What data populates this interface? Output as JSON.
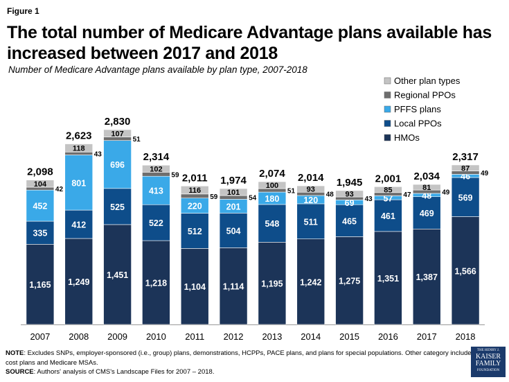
{
  "figure_label": "Figure 1",
  "title": "The total number of Medicare Advantage plans available has increased between 2017 and 2018",
  "subtitle": "Number of Medicare Advantage plans available by plan type, 2007-2018",
  "note_label": "NOTE",
  "note_text": ": Excludes SNPs, employer-sponsored (i.e., group) plans, demonstrations, HCPPs, PACE plans, and plans for special populations. Other category includes cost plans and Medicare MSAs.",
  "source_label": "SOURCE",
  "source_text": ": Authors' analysis of CMS's Landscape Files for 2007 – 2018.",
  "logo": {
    "line1": "THE HENRY J.",
    "line2": "KAISER",
    "line3": "FAMILY",
    "line4": "FOUNDATION"
  },
  "chart_data": {
    "type": "bar",
    "stacked": true,
    "categories": [
      "2007",
      "2008",
      "2009",
      "2010",
      "2011",
      "2012",
      "2013",
      "2014",
      "2015",
      "2016",
      "2017",
      "2018"
    ],
    "series": [
      {
        "name": "HMOs",
        "color": "#1c3458",
        "values": [
          1165,
          1249,
          1451,
          1218,
          1104,
          1114,
          1195,
          1242,
          1275,
          1351,
          1387,
          1566
        ]
      },
      {
        "name": "Local PPOs",
        "color": "#0e4d8a",
        "values": [
          335,
          412,
          525,
          522,
          512,
          504,
          548,
          511,
          465,
          461,
          469,
          569
        ]
      },
      {
        "name": "PFFS plans",
        "color": "#3aa9e8",
        "values": [
          452,
          801,
          696,
          413,
          220,
          201,
          180,
          120,
          69,
          57,
          48,
          46
        ]
      },
      {
        "name": "Regional PPOs",
        "color": "#6e6e6e",
        "values": [
          42,
          43,
          51,
          59,
          59,
          54,
          51,
          48,
          43,
          47,
          49,
          49
        ]
      },
      {
        "name": "Other plan types",
        "color": "#c4c4c4",
        "values": [
          104,
          118,
          107,
          102,
          116,
          101,
          100,
          93,
          93,
          85,
          81,
          87
        ]
      }
    ],
    "value_labels": [
      [
        "1,165",
        "1,249",
        "1,451",
        "1,218",
        "1,104",
        "1,114",
        "1,195",
        "1,242",
        "1,275",
        "1,351",
        "1,387",
        "1,566"
      ],
      [
        "335",
        "412",
        "525",
        "522",
        "512",
        "504",
        "548",
        "511",
        "465",
        "461",
        "469",
        "569"
      ],
      [
        "452",
        "801",
        "696",
        "413",
        "220",
        "201",
        "180",
        "120",
        "69",
        "57",
        "48",
        "46"
      ],
      [
        "42",
        "43",
        "51",
        "59",
        "59",
        "54",
        "51",
        "48",
        "43",
        "47",
        "49",
        "49"
      ],
      [
        "104",
        "118",
        "107",
        "102",
        "116",
        "101",
        "100",
        "93",
        "93",
        "85",
        "81",
        "87"
      ]
    ],
    "totals": [
      2098,
      2623,
      2830,
      2314,
      2011,
      1974,
      2074,
      2014,
      1945,
      2001,
      2034,
      2317
    ],
    "total_labels": [
      "2,098",
      "2,623",
      "2,830",
      "2,314",
      "2,011",
      "1,974",
      "2,074",
      "2,014",
      "1,945",
      "2,001",
      "2,034",
      "2,317"
    ],
    "legend_order": [
      "Other plan types",
      "Regional PPOs",
      "PFFS plans",
      "Local PPOs",
      "HMOs"
    ],
    "legend_position": "top-right",
    "ylim": [
      0,
      2830
    ],
    "grid": false,
    "xlabel": "",
    "ylabel": ""
  }
}
